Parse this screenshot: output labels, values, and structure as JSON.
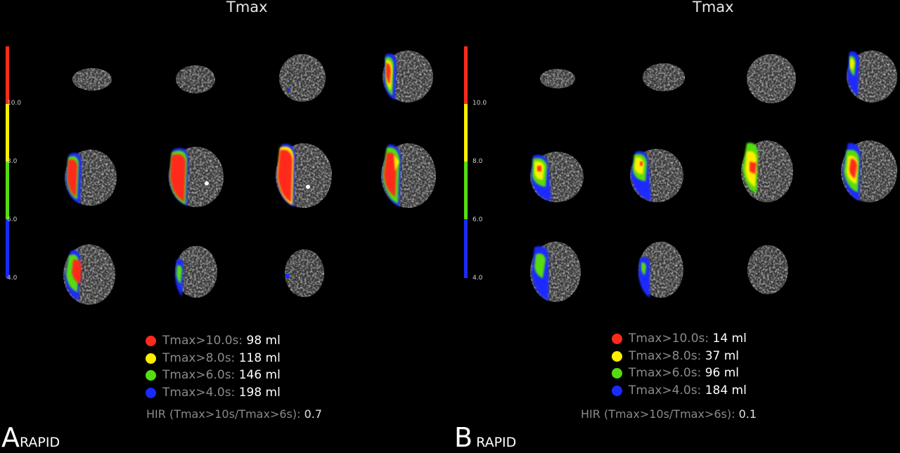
{
  "panels": [
    {
      "id": "A",
      "title": "Tmax",
      "letter": "A",
      "label": "RAPID",
      "scale_ticks": [
        "10.0",
        "8.0",
        "6.0",
        "4.0"
      ],
      "legend": [
        {
          "label": "Tmax>10.0s:",
          "value": "98 ml",
          "color": "#ff2a1a"
        },
        {
          "label": "Tmax>8.0s:",
          "value": "118 ml",
          "color": "#ffee00"
        },
        {
          "label": "Tmax>6.0s:",
          "value": "146 ml",
          "color": "#55dd11"
        },
        {
          "label": "Tmax>4.0s:",
          "value": "198 ml",
          "color": "#1a2aff"
        }
      ],
      "hir_label": "HIR (Tmax>10s/Tmax>6s):",
      "hir_value": "0.7"
    },
    {
      "id": "B",
      "title": "Tmax",
      "letter": "B",
      "label": "RAPID",
      "scale_ticks": [
        "10.0",
        "8.0",
        "6.0",
        "4.0"
      ],
      "legend": [
        {
          "label": "Tmax>10.0s:",
          "value": "14 ml",
          "color": "#ff2a1a"
        },
        {
          "label": "Tmax>8.0s:",
          "value": "37 ml",
          "color": "#ffee00"
        },
        {
          "label": "Tmax>6.0s:",
          "value": "96 ml",
          "color": "#55dd11"
        },
        {
          "label": "Tmax>4.0s:",
          "value": "184 ml",
          "color": "#1a2aff"
        }
      ],
      "hir_label": "HIR (Tmax>10s/Tmax>6s):",
      "hir_value": "0.1"
    }
  ],
  "colors": {
    "red": "#ff2a1a",
    "yellow": "#ffee00",
    "green": "#55dd11",
    "blue": "#1a2aff",
    "background": "#000000"
  }
}
